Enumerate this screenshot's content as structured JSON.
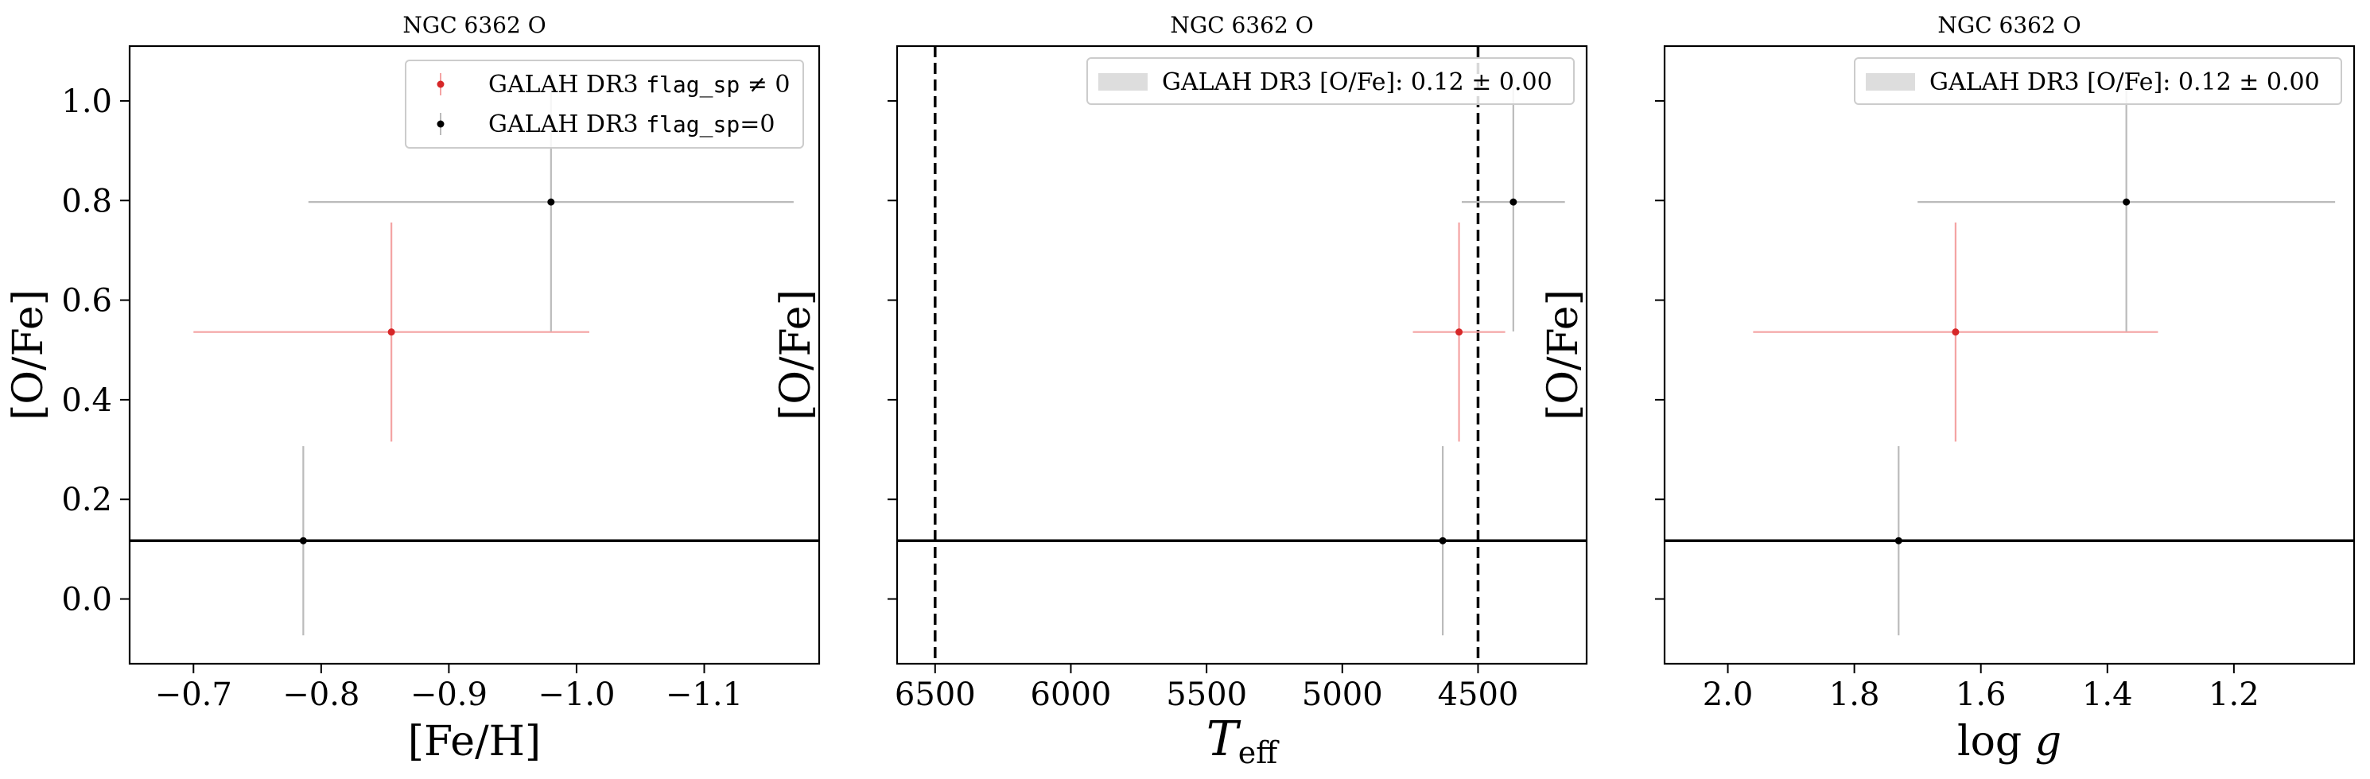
{
  "colors": {
    "flagged": "#d62728",
    "clean": "#000000",
    "clean_err": "#bbbbbb",
    "flagged_err": "#f4a3a3",
    "band": "#dddddd"
  },
  "legend": {
    "flagged_label_prefix": "GALAH DR3",
    "flagged_label_code": "flag_sp",
    "flagged_label_suffix": "≠ 0",
    "clean_label_prefix": "GALAH DR3",
    "clean_label_code": "flag_sp",
    "clean_label_suffix": "=0",
    "band_label": "GALAH DR3 [O/Fe]: 0.12 ± 0.00"
  },
  "chart_data": [
    {
      "type": "scatter",
      "title": "NGC 6362 O",
      "xlabel": "[Fe/H]",
      "ylabel": "[O/Fe]",
      "xlim": [
        -0.65,
        -1.19
      ],
      "ylim": [
        -0.13,
        1.11
      ],
      "x_inverted": true,
      "xticks": [
        -0.7,
        -0.8,
        -0.9,
        -1.0,
        -1.1
      ],
      "xtick_labels": [
        "−0.7",
        "−0.8",
        "−0.9",
        "−1.0",
        "−1.1"
      ],
      "yticks": [
        0.0,
        0.2,
        0.4,
        0.6,
        0.8,
        1.0
      ],
      "ytick_labels": [
        "0.0",
        "0.2",
        "0.4",
        "0.6",
        "0.8",
        "1.0"
      ],
      "hline": 0.117,
      "legend": "top-right (flag series)",
      "points": [
        {
          "series": "flagged",
          "x": -0.855,
          "y": 0.536,
          "xerr": 0.155,
          "yerr": 0.22
        },
        {
          "series": "clean",
          "x": -0.98,
          "y": 0.797,
          "xerr": 0.19,
          "yerr": 0.26
        },
        {
          "series": "clean",
          "x": -0.786,
          "y": 0.117,
          "xerr": 0,
          "yerr": 0.19
        }
      ]
    },
    {
      "type": "scatter",
      "title": "NGC 6362 O",
      "xlabel": "T_eff",
      "ylabel": "[O/Fe]",
      "xlim": [
        6640,
        4100
      ],
      "ylim": [
        -0.13,
        1.11
      ],
      "x_inverted": true,
      "xticks": [
        6500,
        6000,
        5500,
        5000,
        4500
      ],
      "xtick_labels": [
        "6500",
        "6000",
        "5500",
        "5000",
        "4500"
      ],
      "yticks": [
        0.0,
        0.2,
        0.4,
        0.6,
        0.8,
        1.0
      ],
      "ytick_labels": [
        "",
        "",
        "",
        "",
        "",
        ""
      ],
      "hline": 0.117,
      "vlines": [
        6500,
        4500
      ],
      "legend": "top-right (band)",
      "points": [
        {
          "series": "flagged",
          "x": 4570,
          "y": 0.536,
          "xerr": 170,
          "yerr": 0.22
        },
        {
          "series": "clean",
          "x": 4370,
          "y": 0.797,
          "xerr": 190,
          "yerr": 0.26
        },
        {
          "series": "clean",
          "x": 4630,
          "y": 0.117,
          "xerr": 0,
          "yerr": 0.19
        }
      ]
    },
    {
      "type": "scatter",
      "title": "NGC 6362 O",
      "xlabel": "log g",
      "ylabel": "[O/Fe]",
      "xlim": [
        2.1,
        1.01
      ],
      "ylim": [
        -0.13,
        1.11
      ],
      "x_inverted": true,
      "xticks": [
        2.0,
        1.8,
        1.6,
        1.4,
        1.2
      ],
      "xtick_labels": [
        "2.0",
        "1.8",
        "1.6",
        "1.4",
        "1.2"
      ],
      "yticks": [
        0.0,
        0.2,
        0.4,
        0.6,
        0.8,
        1.0
      ],
      "ytick_labels": [
        "",
        "",
        "",
        "",
        "",
        ""
      ],
      "hline": 0.117,
      "legend": "top-right (band)",
      "points": [
        {
          "series": "flagged",
          "x": 1.64,
          "y": 0.536,
          "xerr": 0.32,
          "yerr": 0.22
        },
        {
          "series": "clean",
          "x": 1.37,
          "y": 0.797,
          "xerr": 0.33,
          "yerr": 0.26
        },
        {
          "series": "clean",
          "x": 1.73,
          "y": 0.117,
          "xerr": 0,
          "yerr": 0.19
        }
      ]
    }
  ]
}
